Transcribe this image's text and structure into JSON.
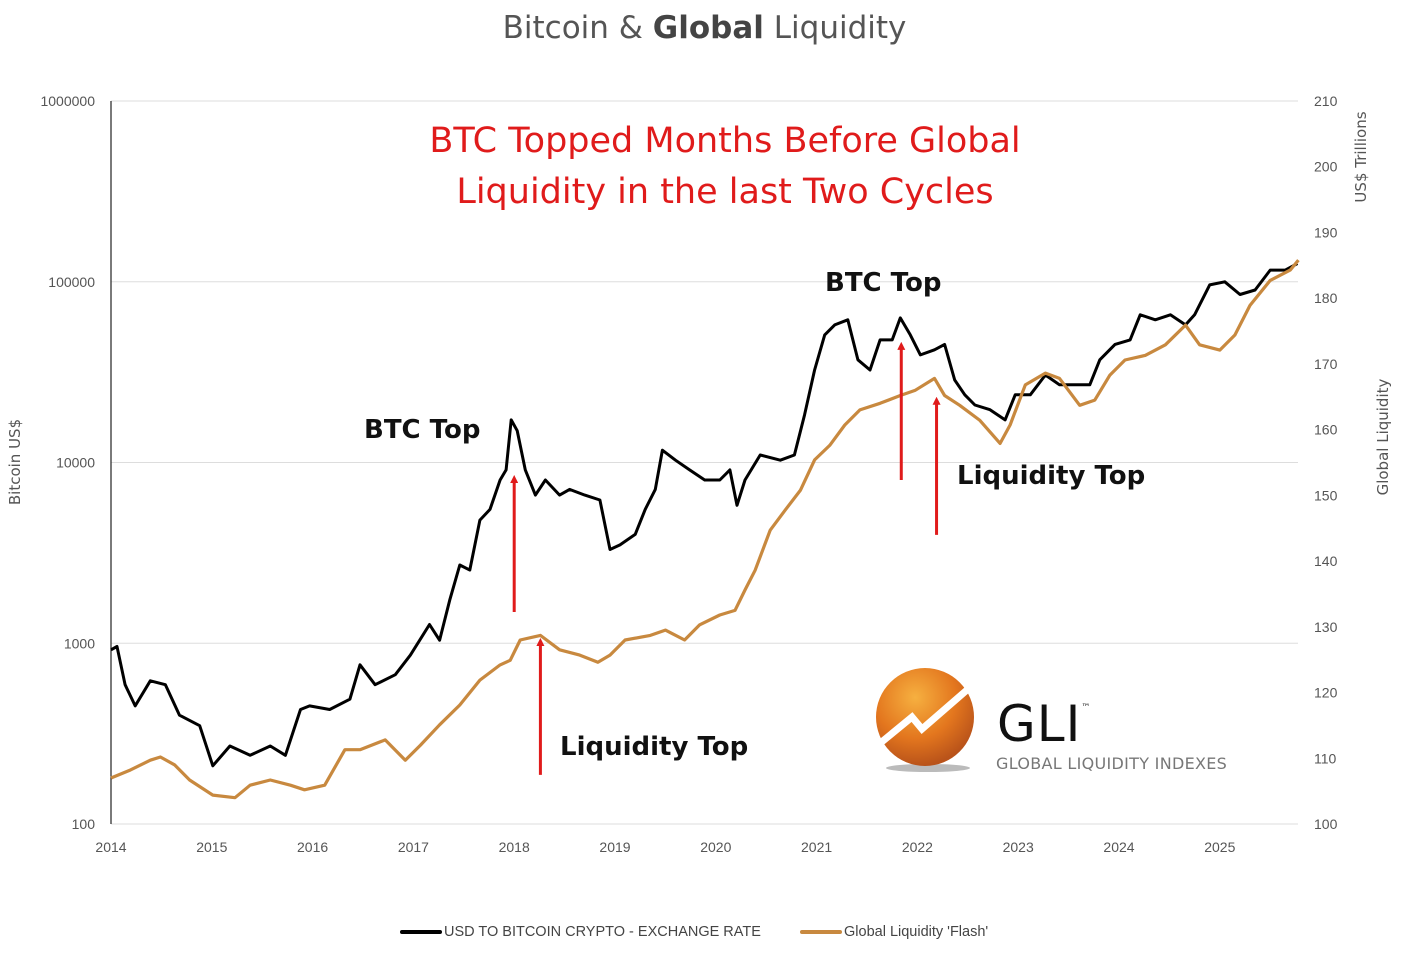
{
  "chart_data": {
    "type": "line",
    "title_regular_1": "Bitcoin & ",
    "title_bold": "Global",
    "title_regular_2": " Liquidity",
    "headline_line1": "BTC Topped Months Before Global",
    "headline_line2": "Liquidity in the last Two Cycles",
    "xlabel": "",
    "ylabel_left": "Bitcoin US$",
    "ylabel_right_unit": "US$ Trillions",
    "ylabel_right": "Global Liquidity",
    "x_ticks": [
      "2014",
      "2015",
      "2016",
      "2017",
      "2018",
      "2019",
      "2020",
      "2021",
      "2022",
      "2023",
      "2024",
      "2025"
    ],
    "xlim": [
      2014,
      2025.8
    ],
    "y_left": {
      "scale": "log",
      "range": [
        100,
        1000000
      ],
      "ticks": [
        "100",
        "1000",
        "10000",
        "100000",
        "1000000"
      ]
    },
    "y_right": {
      "scale": "linear",
      "range": [
        100,
        210
      ],
      "ticks": [
        "100",
        "110",
        "120",
        "130",
        "140",
        "150",
        "160",
        "170",
        "180",
        "190",
        "200",
        "210"
      ]
    },
    "grid": "horizontal",
    "legend_placement": "bottom",
    "series": [
      {
        "name": "USD TO BITCOIN CRYPTO - EXCHANGE RATE",
        "axis": "left",
        "color": "#000000",
        "x": [
          2014.0,
          2014.06,
          2014.14,
          2014.24,
          2014.39,
          2014.54,
          2014.68,
          2014.88,
          2015.01,
          2015.18,
          2015.38,
          2015.58,
          2015.73,
          2015.88,
          2015.97,
          2016.17,
          2016.37,
          2016.47,
          2016.62,
          2016.82,
          2016.97,
          2017.16,
          2017.26,
          2017.36,
          2017.46,
          2017.56,
          2017.66,
          2017.76,
          2017.86,
          2017.92,
          2017.97,
          2018.03,
          2018.11,
          2018.21,
          2018.31,
          2018.45,
          2018.55,
          2018.7,
          2018.85,
          2018.95,
          2019.05,
          2019.2,
          2019.3,
          2019.4,
          2019.47,
          2019.6,
          2019.74,
          2019.89,
          2020.04,
          2020.14,
          2020.21,
          2020.29,
          2020.44,
          2020.64,
          2020.78,
          2020.88,
          2020.98,
          2021.08,
          2021.18,
          2021.31,
          2021.41,
          2021.53,
          2021.63,
          2021.75,
          2021.83,
          2021.93,
          2022.03,
          2022.17,
          2022.27,
          2022.37,
          2022.47,
          2022.57,
          2022.72,
          2022.87,
          2022.97,
          2023.12,
          2023.27,
          2023.41,
          2023.56,
          2023.71,
          2023.81,
          2023.96,
          2024.11,
          2024.21,
          2024.36,
          2024.51,
          2024.66,
          2024.75,
          2024.9,
          2025.05,
          2025.2,
          2025.35,
          2025.5,
          2025.65,
          2025.77
        ],
        "y": [
          920,
          960,
          590,
          450,
          620,
          590,
          400,
          350,
          210,
          270,
          240,
          270,
          240,
          430,
          450,
          430,
          490,
          760,
          590,
          670,
          860,
          1270,
          1040,
          1730,
          2710,
          2540,
          4800,
          5500,
          8000,
          9100,
          17200,
          15000,
          9100,
          6600,
          8000,
          6600,
          7100,
          6600,
          6200,
          3300,
          3500,
          4000,
          5500,
          7100,
          11700,
          10300,
          9100,
          8000,
          8000,
          9100,
          5800,
          8000,
          11000,
          10300,
          11000,
          18300,
          32500,
          50800,
          57700,
          61600,
          37000,
          32500,
          47700,
          47700,
          63100,
          50800,
          39400,
          42000,
          45000,
          28600,
          23700,
          20800,
          19600,
          17200,
          23700,
          23700,
          30500,
          26900,
          26900,
          26900,
          37000,
          45000,
          47700,
          65600,
          61600,
          65600,
          57700,
          65600,
          96100,
          100000,
          85000,
          90000,
          116000,
          116000,
          126000
        ]
      },
      {
        "name": "Global Liquidity 'Flash'",
        "axis": "right",
        "color": "#c8893f",
        "x": [
          2014.0,
          2014.19,
          2014.39,
          2014.49,
          2014.63,
          2014.78,
          2015.01,
          2015.23,
          2015.38,
          2015.58,
          2015.78,
          2015.92,
          2016.12,
          2016.32,
          2016.47,
          2016.72,
          2016.92,
          2017.07,
          2017.26,
          2017.46,
          2017.66,
          2017.86,
          2017.96,
          2018.06,
          2018.26,
          2018.45,
          2018.65,
          2018.83,
          2018.95,
          2019.1,
          2019.35,
          2019.5,
          2019.69,
          2019.84,
          2020.04,
          2020.19,
          2020.29,
          2020.39,
          2020.54,
          2020.69,
          2020.84,
          2020.98,
          2021.13,
          2021.28,
          2021.43,
          2021.63,
          2021.83,
          2021.98,
          2022.17,
          2022.27,
          2022.42,
          2022.62,
          2022.82,
          2022.92,
          2023.07,
          2023.27,
          2023.41,
          2023.61,
          2023.76,
          2023.91,
          2024.06,
          2024.26,
          2024.46,
          2024.66,
          2024.8,
          2025.0,
          2025.15,
          2025.3,
          2025.5,
          2025.7,
          2025.78
        ],
        "y": [
          107.0,
          108.2,
          109.7,
          110.2,
          109.0,
          106.7,
          104.4,
          104.0,
          105.9,
          106.7,
          105.9,
          105.2,
          105.9,
          111.3,
          111.3,
          112.8,
          109.7,
          112.0,
          115.1,
          118.1,
          121.9,
          124.2,
          124.9,
          128.0,
          128.7,
          126.5,
          125.7,
          124.6,
          125.7,
          128.0,
          128.7,
          129.5,
          128.0,
          130.3,
          131.8,
          132.5,
          135.6,
          138.6,
          144.7,
          147.8,
          150.8,
          155.4,
          157.6,
          160.7,
          163.0,
          164.0,
          165.2,
          166.0,
          167.8,
          165.2,
          163.7,
          161.4,
          157.9,
          160.7,
          166.8,
          168.6,
          167.8,
          163.7,
          164.5,
          168.3,
          170.6,
          171.3,
          172.9,
          175.9,
          172.9,
          172.1,
          174.4,
          178.9,
          182.7,
          184.3,
          185.8
        ]
      }
    ],
    "annotations": [
      {
        "text": "BTC Top",
        "arrow_x": 2018.0,
        "arrow_from": 1490,
        "arrow_to": 8530
      },
      {
        "text": "Liquidity Top",
        "arrow_x": 2018.26,
        "arrow_from": 187,
        "arrow_to": 1070
      },
      {
        "text": "BTC Top",
        "arrow_x": 2021.84,
        "arrow_from": 8000,
        "arrow_to": 46500
      },
      {
        "text": "Liquidity Top",
        "arrow_x": 2022.19,
        "arrow_from": 3980,
        "arrow_to": 23100
      }
    ],
    "arrow_color": "#e01b1b"
  },
  "logo": {
    "mark": "GLI",
    "tm": "™",
    "subtitle": "GLOBAL LIQUIDITY INDEXES"
  }
}
